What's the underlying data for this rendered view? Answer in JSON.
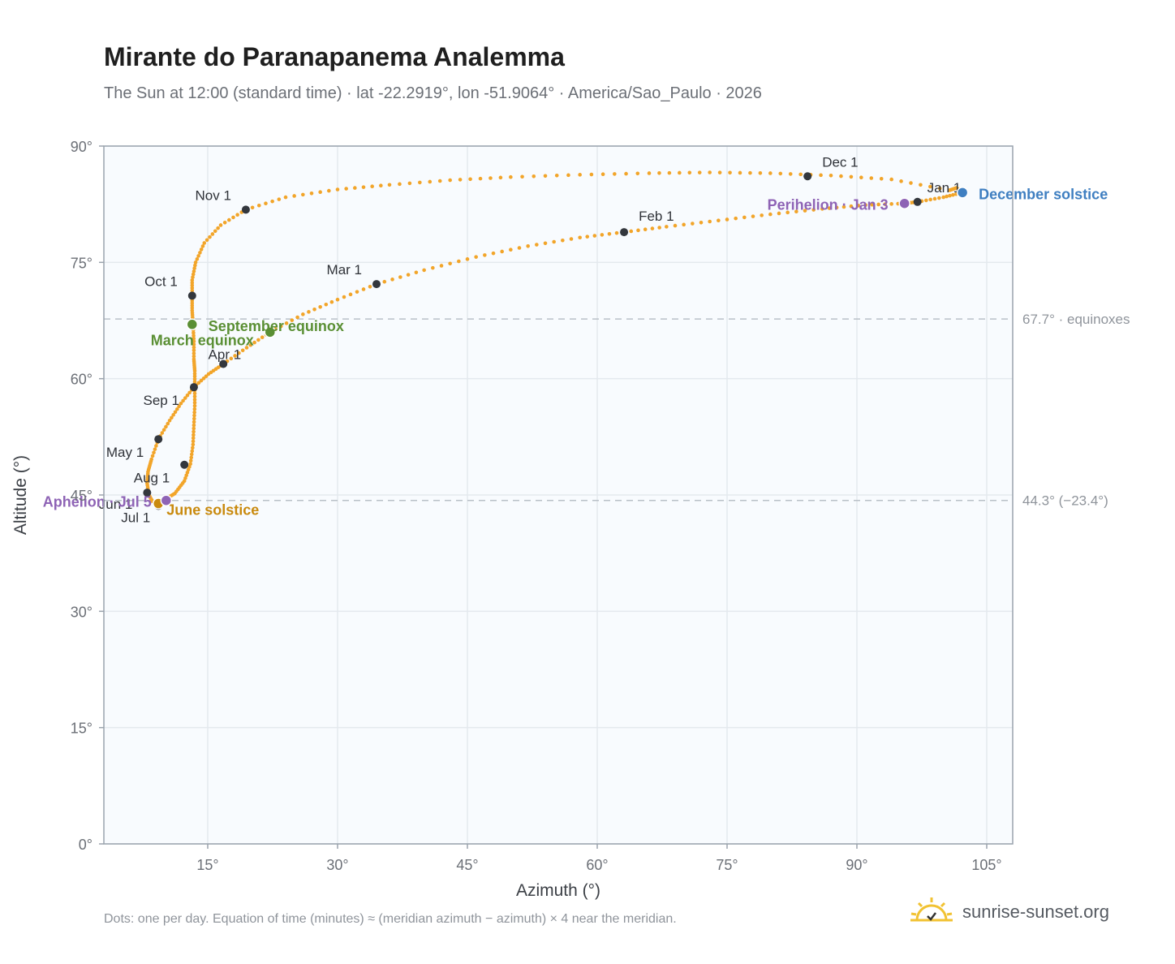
{
  "header": {
    "title": "Mirante do Paranapanema Analemma",
    "subtitle": "The Sun at 12:00 (standard time) · lat -22.2919°, lon -51.9064° · America/Sao_Paulo · 2026"
  },
  "footer": {
    "note": "Dots: one per day. Equation of time (minutes) ≈ (meridian azimuth − azimuth) × 4 near the meridian.",
    "brand": "sunrise-sunset.org"
  },
  "colors": {
    "path": "#f2a52a",
    "month_marker": "#33373d",
    "equinox": "#5a8f34",
    "june_solstice": "#c98a0e",
    "december_solstice": "#3f7fc1",
    "apsis": "#8e63b5",
    "plot_bg": "#f8fbfe",
    "grid": "#e4e9ee",
    "frame": "#9aa3ad",
    "reference_line": "#b9c0c7"
  },
  "chart_data": {
    "type": "scatter",
    "xlabel": "Azimuth (°)",
    "ylabel": "Altitude (°)",
    "xlim": [
      3,
      108
    ],
    "ylim": [
      0,
      90
    ],
    "x_ticks": [
      15,
      30,
      45,
      60,
      75,
      90,
      105
    ],
    "x_tick_labels": [
      "15°",
      "30°",
      "45°",
      "60°",
      "75°",
      "90°",
      "105°"
    ],
    "y_ticks": [
      0,
      15,
      30,
      45,
      60,
      75,
      90
    ],
    "y_tick_labels": [
      "0°",
      "15°",
      "30°",
      "45°",
      "60°",
      "75°",
      "90°"
    ],
    "grid": true,
    "reference_lines": [
      {
        "y": 67.7,
        "label": "67.7° · equinoxes"
      },
      {
        "y": 44.3,
        "label": "44.3° (−23.4°)"
      }
    ],
    "daily_path": [
      [
        100.7,
        84.3
      ],
      [
        94.0,
        85.7
      ],
      [
        87.0,
        86.2
      ],
      [
        80.0,
        86.5
      ],
      [
        73.0,
        86.6
      ],
      [
        66.0,
        86.5
      ],
      [
        58.0,
        86.3
      ],
      [
        50.0,
        86.0
      ],
      [
        43.0,
        85.6
      ],
      [
        36.0,
        85.0
      ],
      [
        30.0,
        84.4
      ],
      [
        24.0,
        83.4
      ],
      [
        19.4,
        81.8
      ],
      [
        16.5,
        79.8
      ],
      [
        14.6,
        77.5
      ],
      [
        13.6,
        75.0
      ],
      [
        13.2,
        72.7
      ],
      [
        13.2,
        70.7
      ],
      [
        13.2,
        68.8
      ],
      [
        13.3,
        67.0
      ],
      [
        13.4,
        64.8
      ],
      [
        13.4,
        62.5
      ],
      [
        13.5,
        61.0
      ],
      [
        13.5,
        58.9
      ],
      [
        13.5,
        56.5
      ],
      [
        13.4,
        54.0
      ],
      [
        13.3,
        51.5
      ],
      [
        13.0,
        49.0
      ],
      [
        12.3,
        46.8
      ],
      [
        11.2,
        45.2
      ],
      [
        10.2,
        44.5
      ],
      [
        9.3,
        44.0
      ],
      [
        8.6,
        44.2
      ],
      [
        8.2,
        45.0
      ],
      [
        8.0,
        46.5
      ],
      [
        8.1,
        48.0
      ],
      [
        8.5,
        49.6
      ],
      [
        9.3,
        52.2
      ],
      [
        10.6,
        54.6
      ],
      [
        11.9,
        56.8
      ],
      [
        13.4,
        58.9
      ],
      [
        15.1,
        60.6
      ],
      [
        16.8,
        61.9
      ],
      [
        19.5,
        64.0
      ],
      [
        22.2,
        66.0
      ],
      [
        26.0,
        68.3
      ],
      [
        30.0,
        70.2
      ],
      [
        34.5,
        72.2
      ],
      [
        40.0,
        74.0
      ],
      [
        46.0,
        75.7
      ],
      [
        52.0,
        77.1
      ],
      [
        58.0,
        78.2
      ],
      [
        63.1,
        78.9
      ],
      [
        68.0,
        79.6
      ],
      [
        74.0,
        80.4
      ],
      [
        80.0,
        81.2
      ],
      [
        86.0,
        81.9
      ],
      [
        91.0,
        82.4
      ],
      [
        95.5,
        82.6
      ],
      [
        97.0,
        82.8
      ],
      [
        100.0,
        83.4
      ],
      [
        102.2,
        84.0
      ],
      [
        101.5,
        84.6
      ],
      [
        100.7,
        84.3
      ]
    ],
    "month_markers": [
      {
        "label": "Jan 1",
        "x": 97.0,
        "y": 82.8
      },
      {
        "label": "Feb 1",
        "x": 63.1,
        "y": 78.9
      },
      {
        "label": "Mar 1",
        "x": 34.5,
        "y": 72.2
      },
      {
        "label": "Apr 1",
        "x": 16.8,
        "y": 61.9
      },
      {
        "label": "May 1",
        "x": 9.3,
        "y": 52.2
      },
      {
        "label": "Jun 1",
        "x": 8.0,
        "y": 45.3
      },
      {
        "label": "Jul 1",
        "x": 9.3,
        "y": 43.6
      },
      {
        "label": "Aug 1",
        "x": 12.3,
        "y": 48.9
      },
      {
        "label": "Sep 1",
        "x": 13.4,
        "y": 58.9
      },
      {
        "label": "Oct 1",
        "x": 13.2,
        "y": 70.7
      },
      {
        "label": "Nov 1",
        "x": 19.4,
        "y": 81.8
      },
      {
        "label": "Dec 1",
        "x": 84.3,
        "y": 86.1
      }
    ],
    "events": [
      {
        "label": "March equinox",
        "x": 22.2,
        "y": 66.0,
        "kind": "equinox"
      },
      {
        "label": "September equinox",
        "x": 13.2,
        "y": 67.0,
        "kind": "equinox"
      },
      {
        "label": "June solstice",
        "x": 9.3,
        "y": 43.9,
        "kind": "june_solstice"
      },
      {
        "label": "December solstice",
        "x": 102.2,
        "y": 84.0,
        "kind": "december_solstice"
      },
      {
        "label": "Perihelion · Jan 3",
        "x": 95.5,
        "y": 82.6,
        "kind": "apsis"
      },
      {
        "label": "Aphelion · Jul 5",
        "x": 10.2,
        "y": 44.3,
        "kind": "apsis"
      }
    ]
  }
}
